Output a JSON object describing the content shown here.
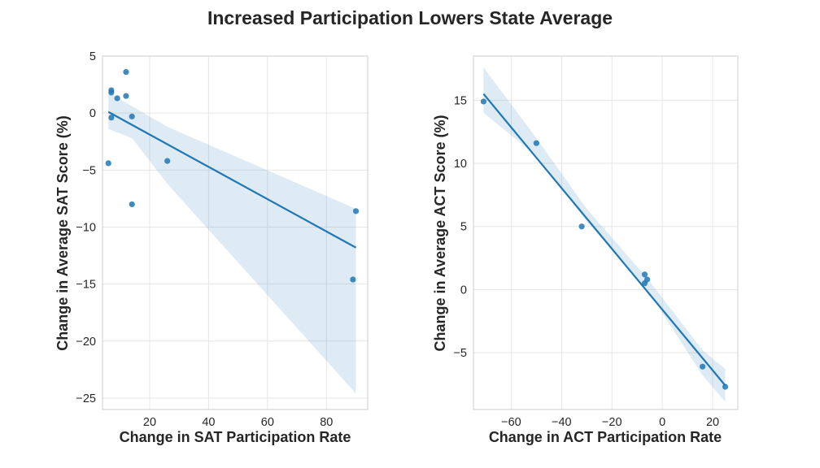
{
  "figure": {
    "title": "Increased Participation Lowers State Average"
  },
  "chart_data": [
    {
      "type": "scatter",
      "regression": "linear",
      "confidence_band": true,
      "xlabel": "Change in SAT Participation Rate",
      "ylabel": "Change in Average SAT Score (%)",
      "xlim": [
        4,
        94
      ],
      "ylim": [
        -26,
        5
      ],
      "xticks": [
        20,
        40,
        60,
        80
      ],
      "yticks": [
        5,
        0,
        -5,
        -10,
        -15,
        -20,
        -25
      ],
      "grid": true,
      "color": "#1f77b4",
      "points": [
        {
          "x": 6,
          "y": -4.4
        },
        {
          "x": 7,
          "y": 2.0
        },
        {
          "x": 7,
          "y": 1.8
        },
        {
          "x": 7,
          "y": -0.4
        },
        {
          "x": 9,
          "y": 1.3
        },
        {
          "x": 12,
          "y": 3.6
        },
        {
          "x": 12,
          "y": 1.5
        },
        {
          "x": 14,
          "y": -0.3
        },
        {
          "x": 14,
          "y": -8.0
        },
        {
          "x": 26,
          "y": -4.2
        },
        {
          "x": 89,
          "y": -14.6
        },
        {
          "x": 90,
          "y": -8.6
        }
      ],
      "fit_line": [
        [
          6,
          0.1
        ],
        [
          90,
          -11.8
        ]
      ],
      "ci_upper": [
        [
          6,
          1.8
        ],
        [
          14,
          0.6
        ],
        [
          26,
          -1.2
        ],
        [
          90,
          -8.4
        ]
      ],
      "ci_lower": [
        [
          6,
          -1.4
        ],
        [
          14,
          -2.2
        ],
        [
          26,
          -6.2
        ],
        [
          90,
          -24.6
        ]
      ]
    },
    {
      "type": "scatter",
      "regression": "linear",
      "confidence_band": true,
      "xlabel": "Change in ACT Participation Rate",
      "ylabel": "Change in Average ACT Score (%)",
      "xlim": [
        -75,
        30
      ],
      "ylim": [
        -9.5,
        18.5
      ],
      "xticks": [
        -60,
        -40,
        -20,
        0,
        20
      ],
      "yticks": [
        15,
        10,
        5,
        0,
        -5
      ],
      "grid": true,
      "color": "#1f77b4",
      "points": [
        {
          "x": -71,
          "y": 14.9
        },
        {
          "x": -50,
          "y": 11.6
        },
        {
          "x": -32,
          "y": 5.0
        },
        {
          "x": -7,
          "y": 1.2
        },
        {
          "x": -6,
          "y": 0.8
        },
        {
          "x": -7,
          "y": 0.5
        },
        {
          "x": 16,
          "y": -6.1
        },
        {
          "x": 25,
          "y": -7.7
        }
      ],
      "fit_line": [
        [
          -71,
          15.5
        ],
        [
          25,
          -7.6
        ]
      ],
      "ci_upper": [
        [
          -71,
          17.6
        ],
        [
          -50,
          12.0
        ],
        [
          -30,
          6.4
        ],
        [
          -6,
          0.9
        ],
        [
          16,
          -4.8
        ],
        [
          25,
          -6.3
        ]
      ],
      "ci_lower": [
        [
          -71,
          14.0
        ],
        [
          -50,
          10.6
        ],
        [
          -30,
          5.4
        ],
        [
          -6,
          0.0
        ],
        [
          16,
          -6.8
        ],
        [
          25,
          -8.9
        ]
      ]
    }
  ]
}
